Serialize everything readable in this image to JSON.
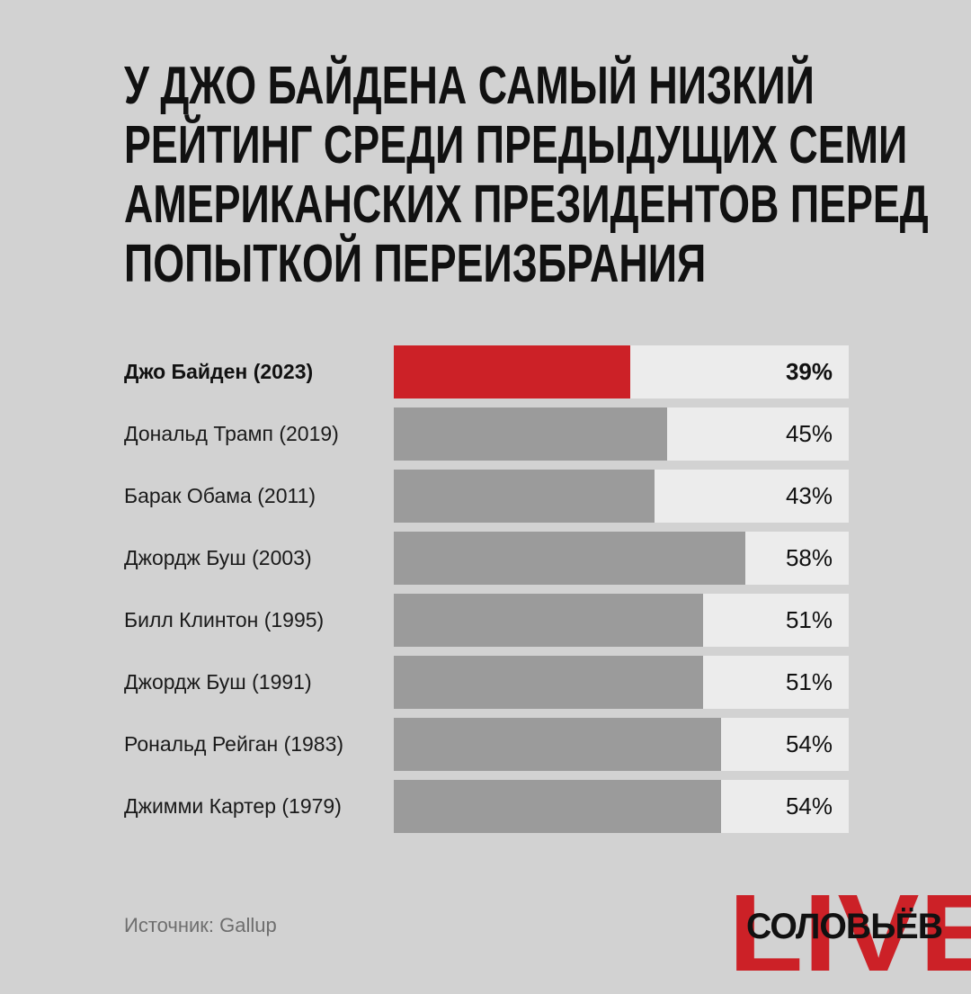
{
  "title_lines": [
    "У Джо Байдена самый низкий",
    "рейтинг среди предыдущих семи",
    "американских президентов перед",
    "попыткой переизбрания"
  ],
  "colors": {
    "highlight": "#cc2127",
    "bar": "#9b9b9b",
    "track": "#ececec",
    "background": "#d2d2d2"
  },
  "chart_data": {
    "type": "bar",
    "title": "У Джо Байдена самый низкий рейтинг среди предыдущих семи американских президентов перед попыткой переизбрания",
    "orientation": "horizontal",
    "xlim": [
      0,
      75
    ],
    "grid": false,
    "categories": [
      "Джо Байден (2023)",
      "Дональд Трамп (2019)",
      "Барак Обама (2011)",
      "Джордж Буш (2003)",
      "Билл Клинтон (1995)",
      "Джордж Буш (1991)",
      "Рональд Рейган (1983)",
      "Джимми Картер (1979)"
    ],
    "values": [
      39,
      45,
      43,
      58,
      51,
      51,
      54,
      54
    ],
    "value_labels": [
      "39%",
      "45%",
      "43%",
      "58%",
      "51%",
      "51%",
      "54%",
      "54%"
    ],
    "highlight_index": 0
  },
  "source": "Источник: Gallup",
  "logo": {
    "accent_text": "LIVE",
    "name_text": "СОЛОВЬЁВ"
  }
}
